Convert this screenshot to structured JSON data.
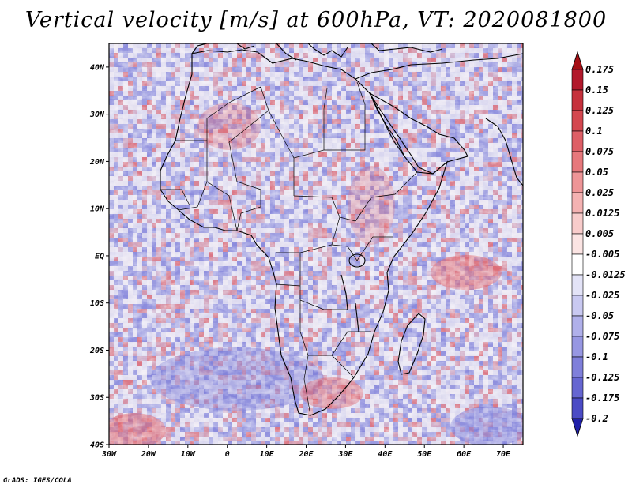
{
  "title": "Vertical velocity [m/s] at 600hPa, VT: 2020081800",
  "credit": "GrADS: IGES/COLA",
  "map": {
    "projection": "lat-lon",
    "lon_range": [
      -30,
      75
    ],
    "lat_range": [
      -40,
      45
    ],
    "lon_ticks": [
      {
        "value": -30,
        "label": "30W"
      },
      {
        "value": -20,
        "label": "20W"
      },
      {
        "value": -10,
        "label": "10W"
      },
      {
        "value": 0,
        "label": "0"
      },
      {
        "value": 10,
        "label": "10E"
      },
      {
        "value": 20,
        "label": "20E"
      },
      {
        "value": 30,
        "label": "30E"
      },
      {
        "value": 40,
        "label": "40E"
      },
      {
        "value": 50,
        "label": "50E"
      },
      {
        "value": 60,
        "label": "60E"
      },
      {
        "value": 70,
        "label": "70E"
      }
    ],
    "lat_ticks": [
      {
        "value": 40,
        "label": "40N"
      },
      {
        "value": 30,
        "label": "30N"
      },
      {
        "value": 20,
        "label": "20N"
      },
      {
        "value": 10,
        "label": "10N"
      },
      {
        "value": 0,
        "label": "EQ"
      },
      {
        "value": -10,
        "label": "10S"
      },
      {
        "value": -20,
        "label": "20S"
      },
      {
        "value": -30,
        "label": "30S"
      },
      {
        "value": -40,
        "label": "40S"
      }
    ],
    "variable": "Vertical velocity",
    "units": "m/s",
    "level": "600hPa",
    "valid_time": "2020081800"
  },
  "colorbar": {
    "levels": [
      {
        "label": "0.175",
        "color": "#b2182b"
      },
      {
        "label": "0.15",
        "color": "#c6313c"
      },
      {
        "label": "0.125",
        "color": "#d4474f"
      },
      {
        "label": "0.1",
        "color": "#de5f66"
      },
      {
        "label": "0.075",
        "color": "#e7787c"
      },
      {
        "label": "0.05",
        "color": "#ee9597"
      },
      {
        "label": "0.025",
        "color": "#f4b2b2"
      },
      {
        "label": "0.0125",
        "color": "#f8cccb"
      },
      {
        "label": "0.005",
        "color": "#fbe4e3"
      },
      {
        "label": "-0.005",
        "color": "#ffffff"
      },
      {
        "label": "-0.0125",
        "color": "#e3e3f7"
      },
      {
        "label": "-0.025",
        "color": "#c9c9f1"
      },
      {
        "label": "-0.05",
        "color": "#b0b0ea"
      },
      {
        "label": "-0.075",
        "color": "#9797e2"
      },
      {
        "label": "-0.1",
        "color": "#7f7fda"
      },
      {
        "label": "-0.125",
        "color": "#6666d1"
      },
      {
        "label": "-0.175",
        "color": "#4b4bc5"
      },
      {
        "label": "-0.2",
        "color": "#3030b5"
      }
    ],
    "top_cap_color": "#a50f15",
    "bottom_cap_color": "#2020a8"
  },
  "field_colors": {
    "ocean_base": "#c8c8ec",
    "land_base": "#dcd6ee",
    "positive": "#e0626a",
    "negative": "#7a7ad8",
    "neutral": "#f6f0f4"
  }
}
